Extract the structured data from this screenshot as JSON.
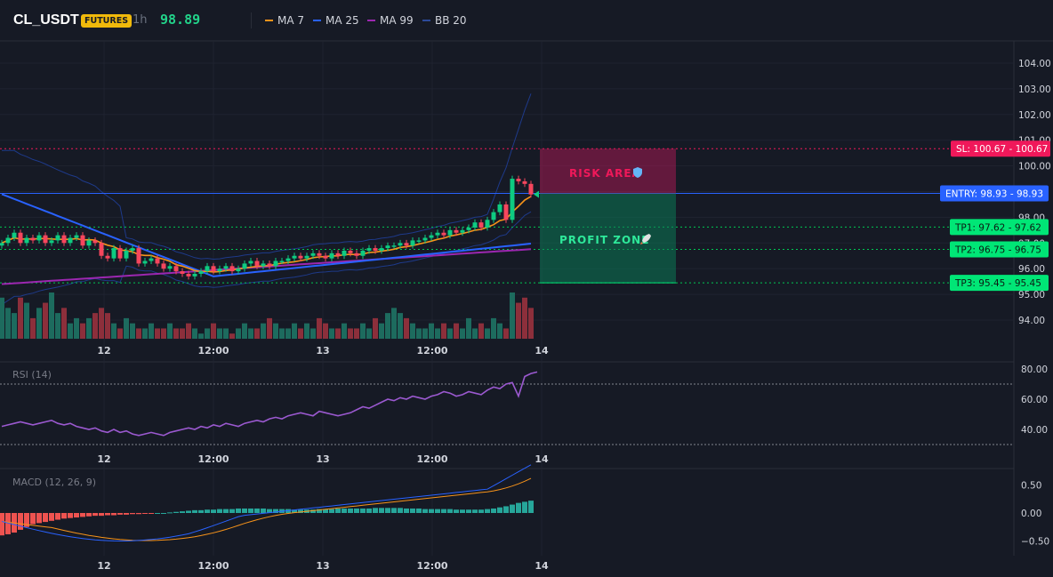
{
  "header": {
    "symbol": "CL_USDT",
    "market_badge": "FUTURES",
    "timeframe": "1h",
    "last_price": "98.89"
  },
  "legend": [
    {
      "label": "MA 7",
      "color": "#f7931a"
    },
    {
      "label": "MA 25",
      "color": "#2962ff"
    },
    {
      "label": "MA 99",
      "color": "#9c27b0"
    },
    {
      "label": "BB 20",
      "color": "#1e3a8a"
    }
  ],
  "price_axis": {
    "ticks": [
      "104.00",
      "103.00",
      "102.00",
      "101.00",
      "100.00",
      "99.00",
      "98.00",
      "97.00",
      "96.00",
      "95.00",
      "94.00"
    ]
  },
  "time_axis": {
    "ticks": [
      "12",
      "12:00",
      "13",
      "12:00",
      "14"
    ]
  },
  "trade_levels": {
    "sl": {
      "label": "SL: 100.67 - 100.67",
      "value": 100.67,
      "color": "#f0185a"
    },
    "entry": {
      "label": "ENTRY: 98.93 - 98.93",
      "value": 98.93,
      "color": "#2962ff"
    },
    "tp1": {
      "label": "TP1: 97.62 - 97.62",
      "value": 97.62,
      "color": "#00e676"
    },
    "tp2": {
      "label": "TP2: 96.75 - 96.75",
      "value": 96.75,
      "color": "#00e676"
    },
    "tp3": {
      "label": "TP3: 95.45 - 95.45",
      "value": 95.45,
      "color": "#00e676"
    }
  },
  "zones": {
    "risk_label": "RISK AREA",
    "risk_icon": "shield-icon",
    "profit_label": "PROFIT ZONE",
    "profit_icon": "rocket-icon"
  },
  "rsi": {
    "label": "RSI (14)",
    "ticks": [
      "80.00",
      "60.00",
      "40.00"
    ],
    "overbought": 70,
    "oversold": 30
  },
  "macd": {
    "label": "MACD (12, 26, 9)",
    "ticks": [
      "0.50",
      "0.00",
      "−0.50"
    ]
  },
  "colors": {
    "up": "#26a69a",
    "down": "#ef5350",
    "bull_candle": "#0ecb81",
    "bear_candle": "#f6465d",
    "rsi_line": "#9b59d0"
  },
  "chart_data": {
    "type": "candlestick",
    "x_ticks": [
      "12",
      "12:00",
      "13",
      "12:00",
      "14"
    ],
    "ylim": [
      93.4,
      104.6
    ],
    "closes": [
      97.0,
      97.2,
      97.4,
      97.0,
      97.2,
      97.1,
      97.3,
      97.0,
      97.1,
      97.3,
      97.0,
      97.2,
      97.3,
      96.9,
      97.1,
      97.0,
      96.5,
      96.4,
      96.8,
      96.4,
      96.7,
      96.8,
      96.2,
      96.3,
      96.4,
      96.2,
      96.0,
      96.1,
      95.9,
      95.8,
      95.7,
      95.8,
      95.9,
      96.1,
      95.9,
      96.0,
      96.1,
      95.9,
      96.0,
      96.2,
      96.3,
      96.1,
      96.2,
      96.1,
      96.3,
      96.3,
      96.4,
      96.5,
      96.4,
      96.5,
      96.6,
      96.5,
      96.4,
      96.6,
      96.5,
      96.7,
      96.6,
      96.5,
      96.7,
      96.8,
      96.7,
      96.8,
      96.9,
      96.9,
      97.0,
      96.9,
      97.1,
      97.1,
      97.2,
      97.3,
      97.4,
      97.3,
      97.5,
      97.4,
      97.5,
      97.6,
      97.8,
      97.6,
      97.9,
      98.2,
      98.5,
      97.9,
      99.5,
      99.4,
      99.3,
      98.89
    ],
    "volume": [
      8,
      6,
      5,
      8,
      7,
      4,
      6,
      7,
      9,
      5,
      6,
      3,
      4,
      3,
      4,
      5,
      6,
      5,
      3,
      2,
      4,
      3,
      2,
      2,
      3,
      2,
      2,
      3,
      2,
      2,
      3,
      2,
      1,
      2,
      3,
      2,
      2,
      1,
      2,
      3,
      2,
      2,
      3,
      4,
      3,
      2,
      2,
      3,
      2,
      3,
      2,
      4,
      3,
      2,
      2,
      3,
      2,
      2,
      3,
      2,
      4,
      3,
      5,
      6,
      5,
      4,
      3,
      2,
      2,
      3,
      2,
      3,
      2,
      3,
      2,
      4,
      2,
      3,
      2,
      4,
      3,
      2,
      9,
      7,
      8,
      6
    ],
    "rsi": [
      42,
      43,
      44,
      45,
      44,
      43,
      44,
      45,
      46,
      44,
      43,
      44,
      42,
      41,
      40,
      41,
      39,
      38,
      40,
      38,
      39,
      37,
      36,
      37,
      38,
      37,
      36,
      38,
      39,
      40,
      41,
      40,
      42,
      41,
      43,
      42,
      44,
      43,
      42,
      44,
      45,
      46,
      45,
      47,
      48,
      47,
      49,
      50,
      51,
      50,
      49,
      52,
      51,
      50,
      49,
      50,
      51,
      53,
      55,
      54,
      56,
      58,
      60,
      59,
      61,
      60,
      62,
      61,
      60,
      62,
      63,
      65,
      64,
      62,
      63,
      65,
      64,
      63,
      66,
      68,
      67,
      70,
      71,
      62,
      75,
      77,
      78
    ],
    "macd_hist": [
      -0.4,
      -0.38,
      -0.35,
      -0.3,
      -0.25,
      -0.2,
      -0.18,
      -0.16,
      -0.14,
      -0.12,
      -0.1,
      -0.09,
      -0.08,
      -0.07,
      -0.06,
      -0.05,
      -0.05,
      -0.04,
      -0.04,
      -0.03,
      -0.03,
      -0.02,
      -0.02,
      -0.01,
      -0.01,
      0,
      0,
      0.01,
      0.02,
      0.03,
      0.04,
      0.05,
      0.05,
      0.06,
      0.06,
      0.07,
      0.07,
      0.07,
      0.08,
      0.08,
      0.08,
      0.08,
      0.08,
      0.07,
      0.07,
      0.07,
      0.07,
      0.06,
      0.06,
      0.06,
      0.06,
      0.07,
      0.07,
      0.07,
      0.08,
      0.08,
      0.08,
      0.08,
      0.08,
      0.08,
      0.09,
      0.09,
      0.09,
      0.09,
      0.09,
      0.08,
      0.08,
      0.08,
      0.07,
      0.07,
      0.07,
      0.07,
      0.07,
      0.06,
      0.06,
      0.06,
      0.06,
      0.06,
      0.07,
      0.08,
      0.1,
      0.12,
      0.15,
      0.18,
      0.2,
      0.22
    ]
  }
}
